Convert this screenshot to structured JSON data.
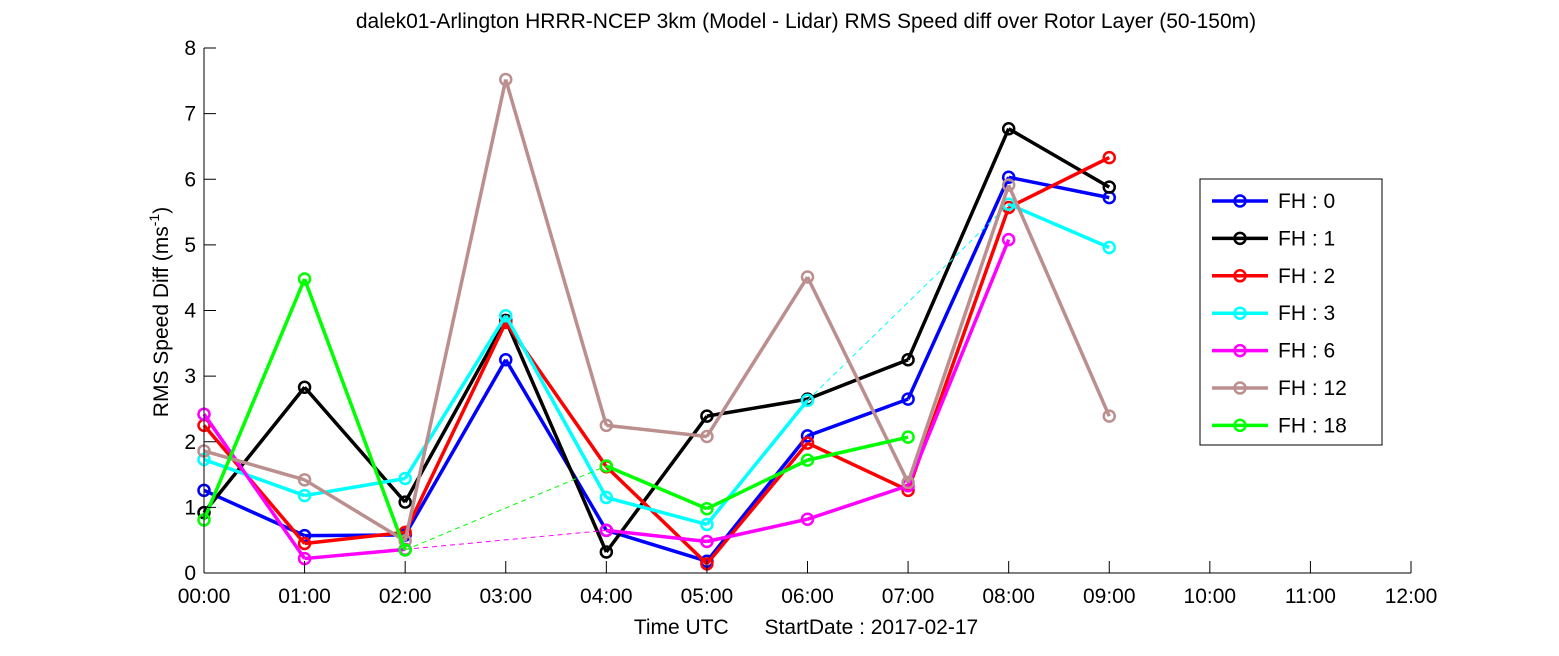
{
  "chart_data": {
    "type": "line",
    "title": "dalek01-Arlington HRRR-NCEP 3km (Model - Lidar) RMS Speed diff over Rotor Layer (50-150m)",
    "xlabel_parts": [
      "Time UTC",
      "StartDate : 2017-02-17"
    ],
    "ylabel": "RMS Speed Diff (ms",
    "ylabel_sup": "-1",
    "ylabel_close": ")",
    "x_tick_labels": [
      "00:00",
      "01:00",
      "02:00",
      "03:00",
      "04:00",
      "05:00",
      "06:00",
      "07:00",
      "08:00",
      "09:00",
      "10:00",
      "11:00",
      "12:00"
    ],
    "xlim": [
      0,
      12
    ],
    "ylim": [
      0,
      8
    ],
    "y_ticks": [
      0,
      1,
      2,
      3,
      4,
      5,
      6,
      7,
      8
    ],
    "y_tick_labels": [
      "0",
      "1",
      "2",
      "3",
      "4",
      "5",
      "6",
      "7",
      "8"
    ],
    "legend_position": "right",
    "series": [
      {
        "name": "FH : 0",
        "color": "#0000ff",
        "values": [
          1.26,
          0.57,
          0.58,
          3.25,
          0.65,
          0.18,
          2.09,
          2.65,
          6.03,
          5.72
        ]
      },
      {
        "name": "FH : 1",
        "color": "#000000",
        "values": [
          0.92,
          2.83,
          1.08,
          3.85,
          0.32,
          2.39,
          2.65,
          3.25,
          6.77,
          5.88
        ]
      },
      {
        "name": "FH : 2",
        "color": "#ff0000",
        "values": [
          2.25,
          0.45,
          0.62,
          3.82,
          1.62,
          0.14,
          1.98,
          1.26,
          5.57,
          6.33
        ]
      },
      {
        "name": "FH : 3",
        "color": "#00ffff",
        "values": [
          1.73,
          1.18,
          1.44,
          3.92,
          1.15,
          0.74,
          2.63,
          null,
          5.62,
          4.96
        ]
      },
      {
        "name": "FH : 6",
        "color": "#ff00ff",
        "values": [
          2.42,
          0.22,
          0.36,
          null,
          0.65,
          0.48,
          0.82,
          1.33,
          5.08,
          null
        ]
      },
      {
        "name": "FH : 12",
        "color": "#bc8f8f",
        "values": [
          1.86,
          1.42,
          0.49,
          7.52,
          2.25,
          2.08,
          4.51,
          1.38,
          5.91,
          2.39
        ]
      },
      {
        "name": "FH : 18",
        "color": "#00ff00",
        "values": [
          0.81,
          4.48,
          0.35,
          null,
          1.63,
          0.98,
          1.72,
          2.07,
          null,
          null
        ]
      }
    ]
  }
}
